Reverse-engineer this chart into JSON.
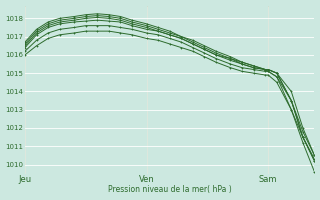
{
  "bg_color": "#cce8e0",
  "grid_color": "#ffffff",
  "line_color": "#2d6b2d",
  "xlabel": "Pression niveau de la mer( hPa )",
  "ylim": [
    1009.5,
    1018.7
  ],
  "yticks": [
    1010,
    1011,
    1012,
    1013,
    1014,
    1015,
    1016,
    1017,
    1018
  ],
  "xtick_labels": [
    "Jeu",
    "Ven",
    "Sam"
  ],
  "xtick_positions": [
    0,
    0.42,
    0.84
  ],
  "series": [
    {
      "x": [
        0.0,
        0.04,
        0.08,
        0.12,
        0.17,
        0.21,
        0.25,
        0.29,
        0.33,
        0.37,
        0.42,
        0.46,
        0.5,
        0.54,
        0.58,
        0.62,
        0.66,
        0.71,
        0.75,
        0.79,
        0.83,
        0.84,
        0.87,
        0.92,
        0.96,
        1.0
      ],
      "y": [
        1016.0,
        1016.5,
        1016.9,
        1017.1,
        1017.2,
        1017.3,
        1017.3,
        1017.3,
        1017.2,
        1017.1,
        1016.9,
        1016.8,
        1016.6,
        1016.4,
        1016.2,
        1015.9,
        1015.6,
        1015.3,
        1015.1,
        1015.0,
        1014.9,
        1014.9,
        1014.5,
        1013.0,
        1011.5,
        1010.3
      ]
    },
    {
      "x": [
        0.0,
        0.04,
        0.08,
        0.12,
        0.17,
        0.21,
        0.25,
        0.29,
        0.33,
        0.37,
        0.42,
        0.46,
        0.5,
        0.54,
        0.58,
        0.62,
        0.66,
        0.71,
        0.75,
        0.79,
        0.83,
        0.84,
        0.87,
        0.92,
        0.96,
        1.0
      ],
      "y": [
        1016.2,
        1016.8,
        1017.2,
        1017.4,
        1017.5,
        1017.6,
        1017.6,
        1017.6,
        1017.5,
        1017.4,
        1017.2,
        1017.1,
        1016.9,
        1016.7,
        1016.4,
        1016.1,
        1015.8,
        1015.5,
        1015.3,
        1015.2,
        1015.1,
        1015.1,
        1014.8,
        1013.5,
        1011.8,
        1010.5
      ]
    },
    {
      "x": [
        0.0,
        0.04,
        0.08,
        0.12,
        0.17,
        0.21,
        0.25,
        0.29,
        0.33,
        0.37,
        0.42,
        0.46,
        0.5,
        0.54,
        0.58,
        0.62,
        0.66,
        0.71,
        0.75,
        0.79,
        0.83,
        0.84,
        0.87,
        0.92,
        0.96,
        1.0
      ],
      "y": [
        1016.4,
        1017.1,
        1017.5,
        1017.7,
        1017.8,
        1017.85,
        1017.9,
        1017.85,
        1017.8,
        1017.6,
        1017.4,
        1017.3,
        1017.1,
        1016.9,
        1016.6,
        1016.3,
        1016.0,
        1015.7,
        1015.5,
        1015.3,
        1015.2,
        1015.2,
        1015.0,
        1014.0,
        1012.0,
        1010.5
      ]
    },
    {
      "x": [
        0.0,
        0.04,
        0.08,
        0.12,
        0.17,
        0.21,
        0.25,
        0.29,
        0.33,
        0.37,
        0.42,
        0.46,
        0.5,
        0.54,
        0.58,
        0.62,
        0.66,
        0.71,
        0.75,
        0.79,
        0.83,
        0.84,
        0.87,
        0.92,
        0.96,
        1.0
      ],
      "y": [
        1016.5,
        1017.2,
        1017.6,
        1017.8,
        1017.9,
        1018.0,
        1018.05,
        1018.0,
        1017.9,
        1017.7,
        1017.5,
        1017.3,
        1017.1,
        1016.9,
        1016.6,
        1016.3,
        1016.0,
        1015.8,
        1015.5,
        1015.3,
        1015.2,
        1015.2,
        1015.0,
        1013.5,
        1011.5,
        1010.2
      ]
    },
    {
      "x": [
        0.0,
        0.04,
        0.08,
        0.12,
        0.17,
        0.21,
        0.25,
        0.29,
        0.33,
        0.37,
        0.42,
        0.46,
        0.5,
        0.54,
        0.58,
        0.62,
        0.66,
        0.71,
        0.75,
        0.79,
        0.83,
        0.84,
        0.87,
        0.92,
        0.96,
        1.0
      ],
      "y": [
        1016.6,
        1017.3,
        1017.7,
        1017.9,
        1018.0,
        1018.1,
        1018.15,
        1018.1,
        1018.0,
        1017.8,
        1017.6,
        1017.4,
        1017.2,
        1017.0,
        1016.7,
        1016.4,
        1016.1,
        1015.8,
        1015.6,
        1015.4,
        1015.2,
        1015.2,
        1015.0,
        1013.5,
        1011.5,
        1010.2
      ]
    },
    {
      "x": [
        0.0,
        0.04,
        0.08,
        0.12,
        0.17,
        0.21,
        0.25,
        0.29,
        0.33,
        0.37,
        0.42,
        0.46,
        0.5,
        0.54,
        0.58,
        0.62,
        0.66,
        0.71,
        0.75,
        0.79,
        0.83,
        0.84,
        0.87,
        0.92,
        0.96,
        1.0
      ],
      "y": [
        1016.7,
        1017.4,
        1017.8,
        1018.0,
        1018.1,
        1018.2,
        1018.25,
        1018.2,
        1018.1,
        1017.9,
        1017.7,
        1017.5,
        1017.3,
        1017.0,
        1016.8,
        1016.5,
        1016.2,
        1015.9,
        1015.6,
        1015.4,
        1015.2,
        1015.1,
        1014.8,
        1013.0,
        1011.2,
        1009.6
      ]
    }
  ]
}
